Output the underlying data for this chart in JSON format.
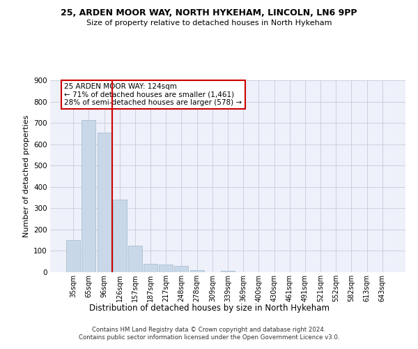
{
  "title_line1": "25, ARDEN MOOR WAY, NORTH HYKEHAM, LINCOLN, LN6 9PP",
  "title_line2": "Size of property relative to detached houses in North Hykeham",
  "xlabel": "Distribution of detached houses by size in North Hykeham",
  "ylabel": "Number of detached properties",
  "categories": [
    "35sqm",
    "65sqm",
    "96sqm",
    "126sqm",
    "157sqm",
    "187sqm",
    "217sqm",
    "248sqm",
    "278sqm",
    "309sqm",
    "339sqm",
    "369sqm",
    "400sqm",
    "430sqm",
    "461sqm",
    "491sqm",
    "521sqm",
    "552sqm",
    "582sqm",
    "613sqm",
    "643sqm"
  ],
  "values": [
    150,
    715,
    655,
    340,
    125,
    40,
    35,
    28,
    10,
    0,
    8,
    0,
    0,
    0,
    0,
    0,
    0,
    0,
    0,
    0,
    0
  ],
  "bar_color": "#c8d8e8",
  "bar_edge_color": "#a0b8cc",
  "vline_x": 2.5,
  "vline_color": "#cc0000",
  "ylim": [
    0,
    900
  ],
  "yticks": [
    0,
    100,
    200,
    300,
    400,
    500,
    600,
    700,
    800,
    900
  ],
  "annotation_text": "25 ARDEN MOOR WAY: 124sqm\n← 71% of detached houses are smaller (1,461)\n28% of semi-detached houses are larger (578) →",
  "annotation_box_color": "#ffffff",
  "annotation_box_edge": "#cc0000",
  "footer_line1": "Contains HM Land Registry data © Crown copyright and database right 2024.",
  "footer_line2": "Contains public sector information licensed under the Open Government Licence v3.0.",
  "bg_color": "#eef0fa",
  "grid_color": "#c8ccd8"
}
